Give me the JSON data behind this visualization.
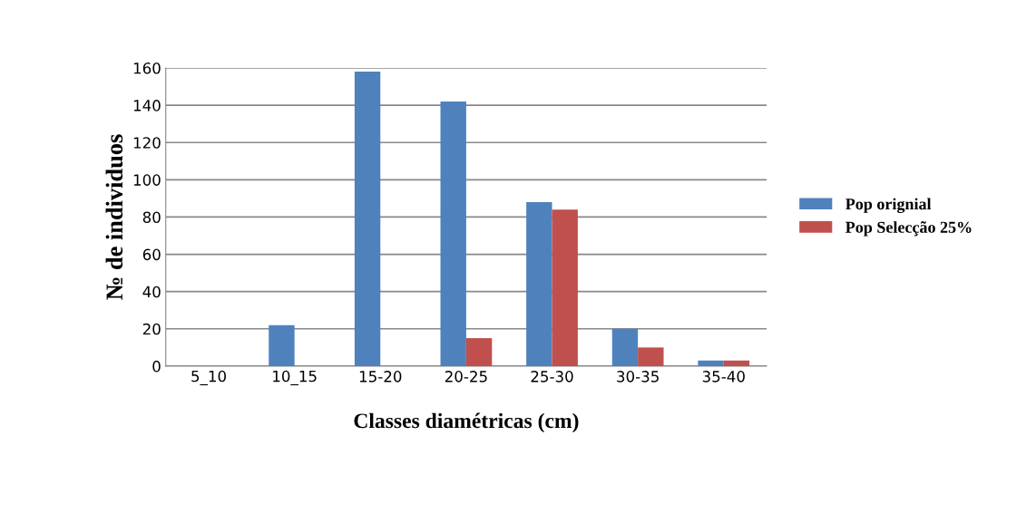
{
  "chart_data": {
    "type": "bar",
    "xlabel": "Classes diamétricas (cm)",
    "ylabel": "№ de individuos",
    "categories": [
      "5_10",
      "10_15",
      "15-20",
      "20-25",
      "25-30",
      "30-35",
      "35-40"
    ],
    "series": [
      {
        "name": "Pop orignial",
        "color": "#4f81bd",
        "values": [
          0,
          22,
          158,
          142,
          88,
          20,
          3
        ]
      },
      {
        "name": "Pop Selecção 25%",
        "color": "#c0504d",
        "values": [
          0,
          0,
          0,
          15,
          84,
          10,
          3
        ]
      }
    ],
    "ylim": [
      0,
      160
    ],
    "yticks": [
      0,
      20,
      40,
      60,
      80,
      100,
      120,
      140,
      160
    ],
    "grid": "y",
    "legend": "right"
  }
}
